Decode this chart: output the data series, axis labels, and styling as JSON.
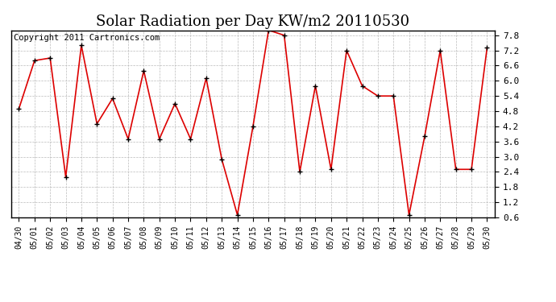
{
  "title": "Solar Radiation per Day KW/m2 20110530",
  "copyright": "Copyright 2011 Cartronics.com",
  "labels": [
    "04/30",
    "05/01",
    "05/02",
    "05/03",
    "05/04",
    "05/05",
    "05/06",
    "05/07",
    "05/08",
    "05/09",
    "05/10",
    "05/11",
    "05/12",
    "05/13",
    "05/14",
    "05/15",
    "05/16",
    "05/17",
    "05/18",
    "05/19",
    "05/20",
    "05/21",
    "05/22",
    "05/23",
    "05/24",
    "05/25",
    "05/26",
    "05/27",
    "05/28",
    "05/29",
    "05/30"
  ],
  "values": [
    4.9,
    6.8,
    6.9,
    2.2,
    7.4,
    4.3,
    5.3,
    3.7,
    6.4,
    3.7,
    5.1,
    3.7,
    6.1,
    2.9,
    0.7,
    4.2,
    8.0,
    7.8,
    2.4,
    5.8,
    2.5,
    7.2,
    5.8,
    5.4,
    5.4,
    0.7,
    3.8,
    7.2,
    2.5,
    2.5,
    7.3
  ],
  "line_color": "#dd0000",
  "marker": "+",
  "marker_color": "#000000",
  "bg_color": "#ffffff",
  "grid_color": "#bbbbbb",
  "ylim": [
    0.6,
    8.0
  ],
  "yticks": [
    0.6,
    1.2,
    1.8,
    2.4,
    3.0,
    3.6,
    4.2,
    4.8,
    5.4,
    6.0,
    6.6,
    7.2,
    7.8
  ],
  "title_fontsize": 13,
  "copyright_fontsize": 7.5,
  "tick_fontsize": 7,
  "ytick_fontsize": 8
}
